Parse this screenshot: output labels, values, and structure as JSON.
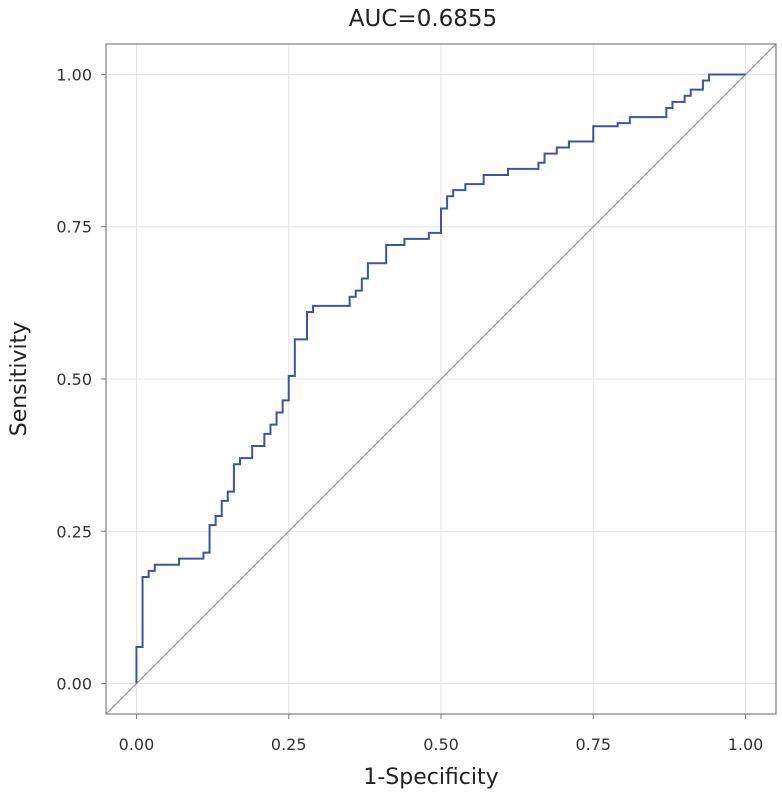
{
  "chart_data": {
    "type": "line",
    "title": "AUC=0.6855",
    "xlabel": "1-Specificity",
    "ylabel": "Sensitivity",
    "xlim": [
      -0.05,
      1.05
    ],
    "ylim": [
      -0.05,
      1.05
    ],
    "x_ticks": [
      0.0,
      0.25,
      0.5,
      0.75,
      1.0
    ],
    "y_ticks": [
      0.0,
      0.25,
      0.5,
      0.75,
      1.0
    ],
    "x_tick_labels": [
      "0.00",
      "0.25",
      "0.50",
      "0.75",
      "1.00"
    ],
    "y_tick_labels": [
      "0.00",
      "0.25",
      "0.50",
      "0.75",
      "1.00"
    ],
    "grid": true,
    "series": [
      {
        "name": "ROC curve",
        "color": "#3b54a4",
        "step": true,
        "x": [
          0.0,
          0.0,
          0.01,
          0.01,
          0.02,
          0.02,
          0.03,
          0.03,
          0.07,
          0.07,
          0.11,
          0.11,
          0.12,
          0.12,
          0.13,
          0.13,
          0.14,
          0.14,
          0.15,
          0.15,
          0.16,
          0.16,
          0.17,
          0.17,
          0.19,
          0.19,
          0.21,
          0.21,
          0.22,
          0.22,
          0.23,
          0.23,
          0.24,
          0.24,
          0.25,
          0.25,
          0.26,
          0.26,
          0.28,
          0.28,
          0.29,
          0.29,
          0.35,
          0.35,
          0.36,
          0.36,
          0.37,
          0.37,
          0.38,
          0.38,
          0.41,
          0.41,
          0.44,
          0.44,
          0.48,
          0.48,
          0.5,
          0.5,
          0.51,
          0.51,
          0.52,
          0.52,
          0.54,
          0.54,
          0.57,
          0.57,
          0.61,
          0.61,
          0.66,
          0.66,
          0.67,
          0.67,
          0.69,
          0.69,
          0.71,
          0.71,
          0.75,
          0.75,
          0.79,
          0.79,
          0.81,
          0.81,
          0.87,
          0.87,
          0.88,
          0.88,
          0.9,
          0.9,
          0.91,
          0.91,
          0.93,
          0.93,
          0.94,
          0.94,
          1.0
        ],
        "y": [
          0.0,
          0.06,
          0.06,
          0.175,
          0.175,
          0.185,
          0.185,
          0.195,
          0.195,
          0.205,
          0.205,
          0.215,
          0.215,
          0.26,
          0.26,
          0.275,
          0.275,
          0.3,
          0.3,
          0.315,
          0.315,
          0.36,
          0.36,
          0.37,
          0.37,
          0.39,
          0.39,
          0.41,
          0.41,
          0.425,
          0.425,
          0.445,
          0.445,
          0.465,
          0.465,
          0.505,
          0.505,
          0.565,
          0.565,
          0.61,
          0.61,
          0.62,
          0.62,
          0.635,
          0.635,
          0.645,
          0.645,
          0.665,
          0.665,
          0.69,
          0.69,
          0.72,
          0.72,
          0.73,
          0.73,
          0.74,
          0.74,
          0.78,
          0.78,
          0.8,
          0.8,
          0.81,
          0.81,
          0.82,
          0.82,
          0.835,
          0.835,
          0.845,
          0.845,
          0.855,
          0.855,
          0.87,
          0.87,
          0.88,
          0.88,
          0.89,
          0.89,
          0.915,
          0.915,
          0.92,
          0.92,
          0.93,
          0.93,
          0.945,
          0.945,
          0.955,
          0.955,
          0.965,
          0.965,
          0.975,
          0.975,
          0.99,
          0.99,
          1.0,
          1.0
        ]
      },
      {
        "name": "reference diagonal",
        "color": "#9a9a9a",
        "x": [
          0.0,
          1.0
        ],
        "y": [
          0.0,
          1.0
        ]
      }
    ]
  }
}
